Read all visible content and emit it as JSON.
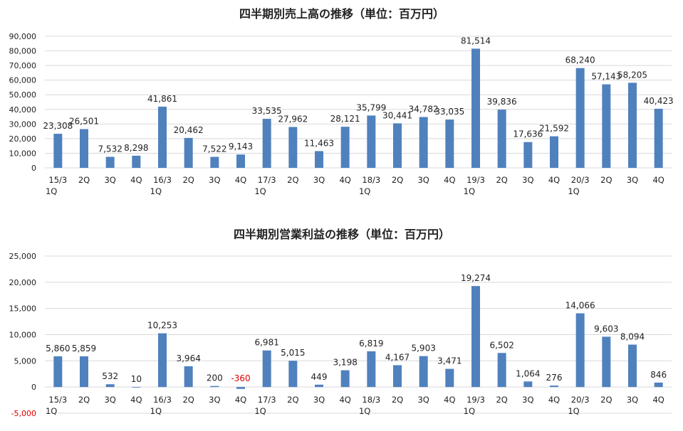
{
  "chart_data": [
    {
      "type": "bar",
      "title": "四半期別売上高の推移（単位：百万円）",
      "categories": [
        [
          "15/3",
          "1Q"
        ],
        [
          "2Q"
        ],
        [
          "3Q"
        ],
        [
          "4Q"
        ],
        [
          "16/3",
          "1Q"
        ],
        [
          "2Q"
        ],
        [
          "3Q"
        ],
        [
          "4Q"
        ],
        [
          "17/3",
          "1Q"
        ],
        [
          "2Q"
        ],
        [
          "3Q"
        ],
        [
          "4Q"
        ],
        [
          "18/3",
          "1Q"
        ],
        [
          "2Q"
        ],
        [
          "3Q"
        ],
        [
          "4Q"
        ],
        [
          "19/3",
          "1Q"
        ],
        [
          "2Q"
        ],
        [
          "3Q"
        ],
        [
          "4Q"
        ],
        [
          "20/3",
          "1Q"
        ],
        [
          "2Q"
        ],
        [
          "3Q"
        ],
        [
          "4Q"
        ]
      ],
      "values": [
        23308,
        26501,
        7532,
        8298,
        41861,
        20462,
        7522,
        9143,
        33535,
        27962,
        11463,
        28121,
        35799,
        30441,
        34782,
        33035,
        81514,
        39836,
        17636,
        21592,
        68240,
        57143,
        58205,
        40423
      ],
      "labels": [
        "23,308",
        "26,501",
        "7,532",
        "8,298",
        "41,861",
        "20,462",
        "7,522",
        "9,143",
        "33,535",
        "27,962",
        "11,463",
        "28,121",
        "35,799",
        "30,441",
        "34,782",
        "33,035",
        "81,514",
        "39,836",
        "17,636",
        "21,592",
        "68,240",
        "57,143",
        "58,205",
        "40,423"
      ],
      "ylim": [
        0,
        90000
      ],
      "ytick_values": [
        0,
        10000,
        20000,
        30000,
        40000,
        50000,
        60000,
        70000,
        80000,
        90000
      ],
      "ytick_labels": [
        "0",
        "10,000",
        "20,000",
        "30,000",
        "40,000",
        "50,000",
        "60,000",
        "70,000",
        "80,000",
        "90,000"
      ],
      "grid": true,
      "bar_color": "#4f81bd"
    },
    {
      "type": "bar",
      "title": "四半期別営業利益の推移（単位：百万円）",
      "categories": [
        [
          "15/3",
          "1Q"
        ],
        [
          "2Q"
        ],
        [
          "3Q"
        ],
        [
          "4Q"
        ],
        [
          "16/3",
          "1Q"
        ],
        [
          "2Q"
        ],
        [
          "3Q"
        ],
        [
          "4Q"
        ],
        [
          "17/3",
          "1Q"
        ],
        [
          "2Q"
        ],
        [
          "3Q"
        ],
        [
          "4Q"
        ],
        [
          "18/3",
          "1Q"
        ],
        [
          "2Q"
        ],
        [
          "3Q"
        ],
        [
          "4Q"
        ],
        [
          "19/3",
          "1Q"
        ],
        [
          "2Q"
        ],
        [
          "3Q"
        ],
        [
          "4Q"
        ],
        [
          "20/3",
          "1Q"
        ],
        [
          "2Q"
        ],
        [
          "3Q"
        ],
        [
          "4Q"
        ]
      ],
      "values": [
        5860,
        5859,
        532,
        10,
        10253,
        3964,
        200,
        -360,
        6981,
        5015,
        449,
        3198,
        6819,
        4167,
        5903,
        3471,
        19274,
        6502,
        1064,
        276,
        14066,
        9603,
        8094,
        846
      ],
      "labels": [
        "5,860",
        "5,859",
        "532",
        "10",
        "10,253",
        "3,964",
        "200",
        "-360",
        "6,981",
        "5,015",
        "449",
        "3,198",
        "6,819",
        "4,167",
        "5,903",
        "3,471",
        "19,274",
        "6,502",
        "1,064",
        "276",
        "14,066",
        "9,603",
        "8,094",
        "846"
      ],
      "ylim": [
        -5000,
        25000
      ],
      "ytick_values": [
        -5000,
        0,
        5000,
        10000,
        15000,
        20000,
        25000
      ],
      "ytick_labels": [
        "-5,000",
        "0",
        "5,000",
        "10,000",
        "15,000",
        "20,000",
        "25,000"
      ],
      "grid": true,
      "bar_color": "#4f81bd",
      "negative_label_color": "#e00000"
    }
  ]
}
